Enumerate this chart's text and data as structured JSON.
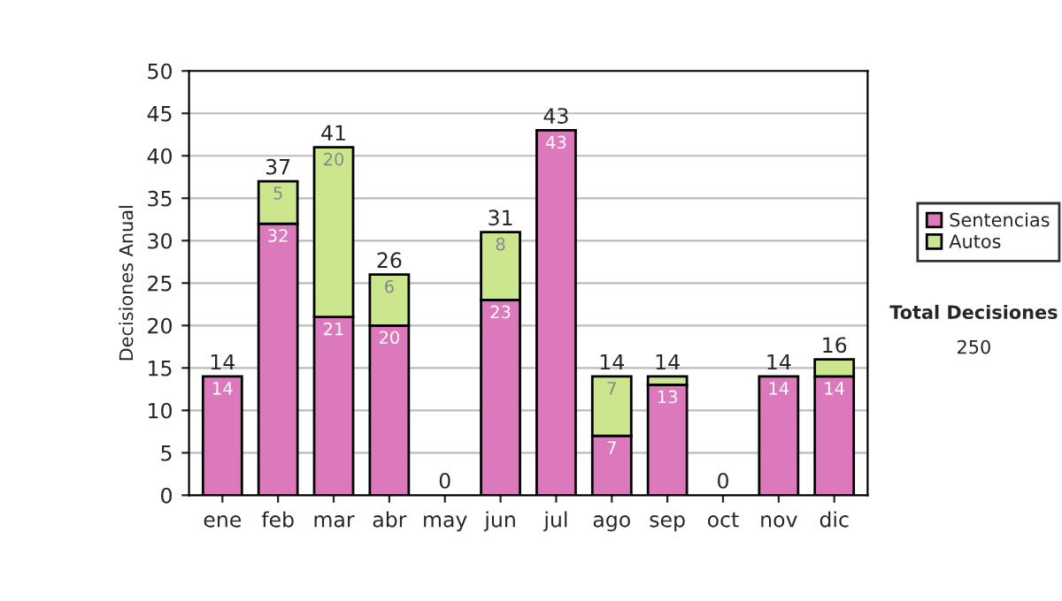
{
  "chart_data": {
    "type": "bar",
    "stacked": true,
    "ylabel": "Decisiones Anual",
    "categories": [
      "ene",
      "feb",
      "mar",
      "abr",
      "may",
      "jun",
      "jul",
      "ago",
      "sep",
      "oct",
      "nov",
      "dic"
    ],
    "series": [
      {
        "name": "Sentencias",
        "color": "#dc78bc",
        "values": [
          14,
          32,
          21,
          20,
          0,
          23,
          43,
          7,
          13,
          0,
          14,
          14
        ],
        "value_labels": [
          "14",
          "32",
          "21",
          "20",
          null,
          "23",
          "43",
          "7",
          "13",
          null,
          "14",
          "14"
        ]
      },
      {
        "name": "Autos",
        "color": "#cce68e",
        "values": [
          0,
          5,
          20,
          6,
          0,
          8,
          0,
          7,
          1,
          0,
          0,
          2
        ],
        "value_labels": [
          null,
          "5",
          "20",
          "6",
          null,
          "8",
          null,
          "7",
          null,
          null,
          null,
          null
        ]
      }
    ],
    "totals": [
      "14",
      "37",
      "41",
      "26",
      "0",
      "31",
      "43",
      "14",
      "14",
      "0",
      "14",
      "16"
    ],
    "ylim": [
      0,
      50
    ],
    "yticks": [
      0,
      5,
      10,
      15,
      20,
      25,
      30,
      35,
      40,
      45,
      50
    ],
    "grid": "y",
    "legend": "right",
    "annotations": [
      "Total Decisiones",
      "250"
    ]
  }
}
